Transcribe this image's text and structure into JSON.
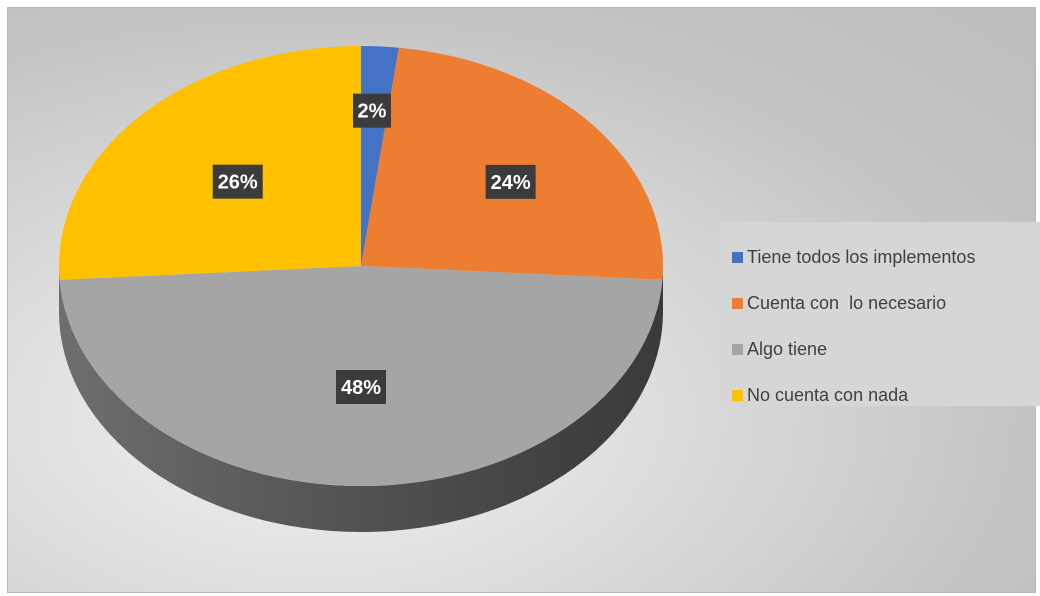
{
  "chart_data": {
    "type": "pie",
    "style": "3d",
    "categories": [
      "Tiene todos los implementos",
      "Cuenta con  lo necesario",
      "Algo tiene",
      "No cuenta con nada"
    ],
    "values": [
      2,
      24,
      48,
      26
    ],
    "labels": [
      "2%",
      "24%",
      "48%",
      "26%"
    ],
    "colors": [
      "#4472c4",
      "#ed7d31",
      "#a5a5a5",
      "#ffc000"
    ],
    "legend_position": "right"
  }
}
